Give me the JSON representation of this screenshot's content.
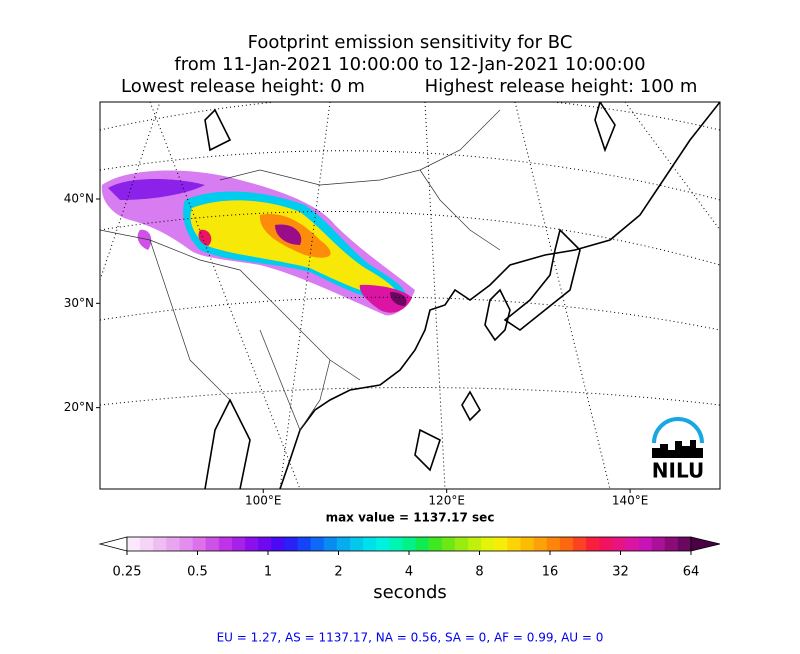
{
  "title": {
    "line1": "Footprint emission sensitivity for BC",
    "line2": "from 11-Jan-2021 10:00:00 to 12-Jan-2021 10:00:00",
    "line3a": "Lowest release height: 0 m",
    "line3b": "Highest release height: 100 m"
  },
  "map": {
    "lonlim": [
      82.2,
      149.8
    ],
    "latlim": [
      12.2,
      49.3
    ],
    "lat_ticks": [
      {
        "value": 40,
        "label": "40°N"
      },
      {
        "value": 30,
        "label": "30°N"
      },
      {
        "value": 20,
        "label": "20°N"
      }
    ],
    "lon_ticks": [
      {
        "value": 100,
        "label": "100°E"
      },
      {
        "value": 120,
        "label": "120°E"
      },
      {
        "value": 140,
        "label": "140°E"
      }
    ],
    "max_value_text": "max value = 1137.17 sec",
    "logo": "NILU"
  },
  "colorbar": {
    "lim": [
      0.25,
      64
    ],
    "log": true,
    "ticks": [
      0.25,
      0.5,
      1,
      2,
      4,
      8,
      16,
      32,
      64
    ],
    "label": "seconds",
    "colors": [
      "#fbe8fb",
      "#f6d4f7",
      "#efbdf3",
      "#e9a6f0",
      "#e38ded",
      "#dc72ea",
      "#cf52e8",
      "#bf35e6",
      "#a920e8",
      "#8c10ec",
      "#6d0af0",
      "#4b0af5",
      "#2a20f8",
      "#1444f8",
      "#0f68f6",
      "#0a8bf2",
      "#06abf0",
      "#03c8ee",
      "#00e0ec",
      "#00f2de",
      "#00f5b4",
      "#00f288",
      "#10ec50",
      "#40e820",
      "#6ee814",
      "#98ec10",
      "#c0f00c",
      "#e2f40a",
      "#f8ec08",
      "#fcd406",
      "#fcbc06",
      "#fca208",
      "#fc860c",
      "#fc6810",
      "#fc4220",
      "#f8203c",
      "#f01460",
      "#e81484",
      "#dc14a4",
      "#c814b4",
      "#aa1098",
      "#8a0c78",
      "#6a0860"
    ]
  },
  "footer": "EU = 1.27,  AS = 1137.17,  NA = 0.56,  SA = 0,  AF = 0.99,  AU = 0"
}
